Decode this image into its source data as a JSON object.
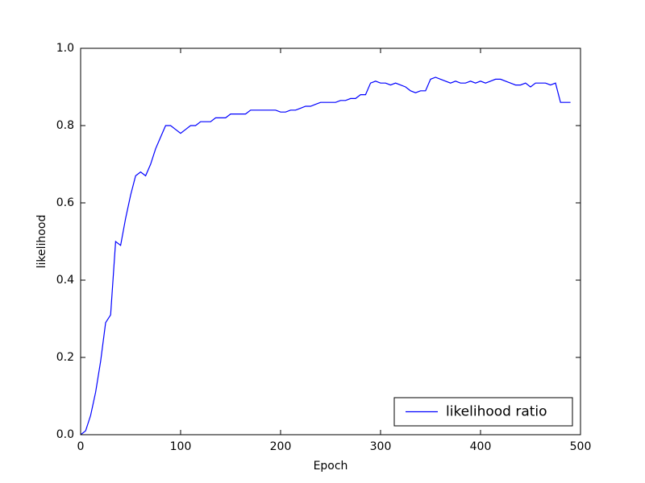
{
  "chart_data": {
    "type": "line",
    "xlabel": "Epoch",
    "ylabel": "likelihood",
    "x": [
      0,
      5,
      10,
      15,
      20,
      25,
      30,
      35,
      40,
      45,
      50,
      55,
      60,
      65,
      70,
      75,
      80,
      85,
      90,
      95,
      100,
      105,
      110,
      115,
      120,
      125,
      130,
      135,
      140,
      145,
      150,
      155,
      160,
      165,
      170,
      175,
      180,
      185,
      190,
      195,
      200,
      205,
      210,
      215,
      220,
      225,
      230,
      235,
      240,
      245,
      250,
      255,
      260,
      265,
      270,
      275,
      280,
      285,
      290,
      295,
      300,
      305,
      310,
      315,
      320,
      325,
      330,
      335,
      340,
      345,
      350,
      355,
      360,
      365,
      370,
      375,
      380,
      385,
      390,
      395,
      400,
      405,
      410,
      415,
      420,
      425,
      430,
      435,
      440,
      445,
      450,
      455,
      460,
      465,
      470,
      475,
      480,
      485,
      490
    ],
    "series": [
      {
        "name": "likelihood ratio",
        "color": "#0000ff",
        "values": [
          0.0,
          0.01,
          0.05,
          0.11,
          0.19,
          0.29,
          0.31,
          0.5,
          0.49,
          0.56,
          0.62,
          0.67,
          0.68,
          0.67,
          0.7,
          0.74,
          0.77,
          0.8,
          0.8,
          0.79,
          0.78,
          0.79,
          0.8,
          0.8,
          0.81,
          0.81,
          0.81,
          0.82,
          0.82,
          0.82,
          0.83,
          0.83,
          0.83,
          0.83,
          0.84,
          0.84,
          0.84,
          0.84,
          0.84,
          0.84,
          0.835,
          0.835,
          0.84,
          0.84,
          0.845,
          0.85,
          0.85,
          0.855,
          0.86,
          0.86,
          0.86,
          0.86,
          0.865,
          0.865,
          0.87,
          0.87,
          0.88,
          0.88,
          0.91,
          0.915,
          0.91,
          0.91,
          0.905,
          0.91,
          0.905,
          0.9,
          0.89,
          0.885,
          0.89,
          0.89,
          0.92,
          0.925,
          0.92,
          0.915,
          0.91,
          0.915,
          0.91,
          0.91,
          0.915,
          0.91,
          0.915,
          0.91,
          0.915,
          0.92,
          0.92,
          0.915,
          0.91,
          0.905,
          0.905,
          0.91,
          0.9,
          0.91,
          0.91,
          0.91,
          0.905,
          0.91,
          0.86,
          0.86,
          0.86
        ]
      }
    ],
    "xlim": [
      0,
      500
    ],
    "xticks": [
      0,
      100,
      200,
      300,
      400,
      500
    ],
    "ylim": [
      0,
      1
    ],
    "yticks": [
      {
        "value": 0,
        "label": "0.0"
      },
      {
        "value": 0.2,
        "label": "0.2"
      },
      {
        "value": 0.4,
        "label": "0.4"
      },
      {
        "value": 0.6,
        "label": "0.6"
      },
      {
        "value": 0.8,
        "label": "0.8"
      },
      {
        "value": 1,
        "label": "1.0"
      }
    ],
    "legend": "lower right",
    "grid": false
  }
}
